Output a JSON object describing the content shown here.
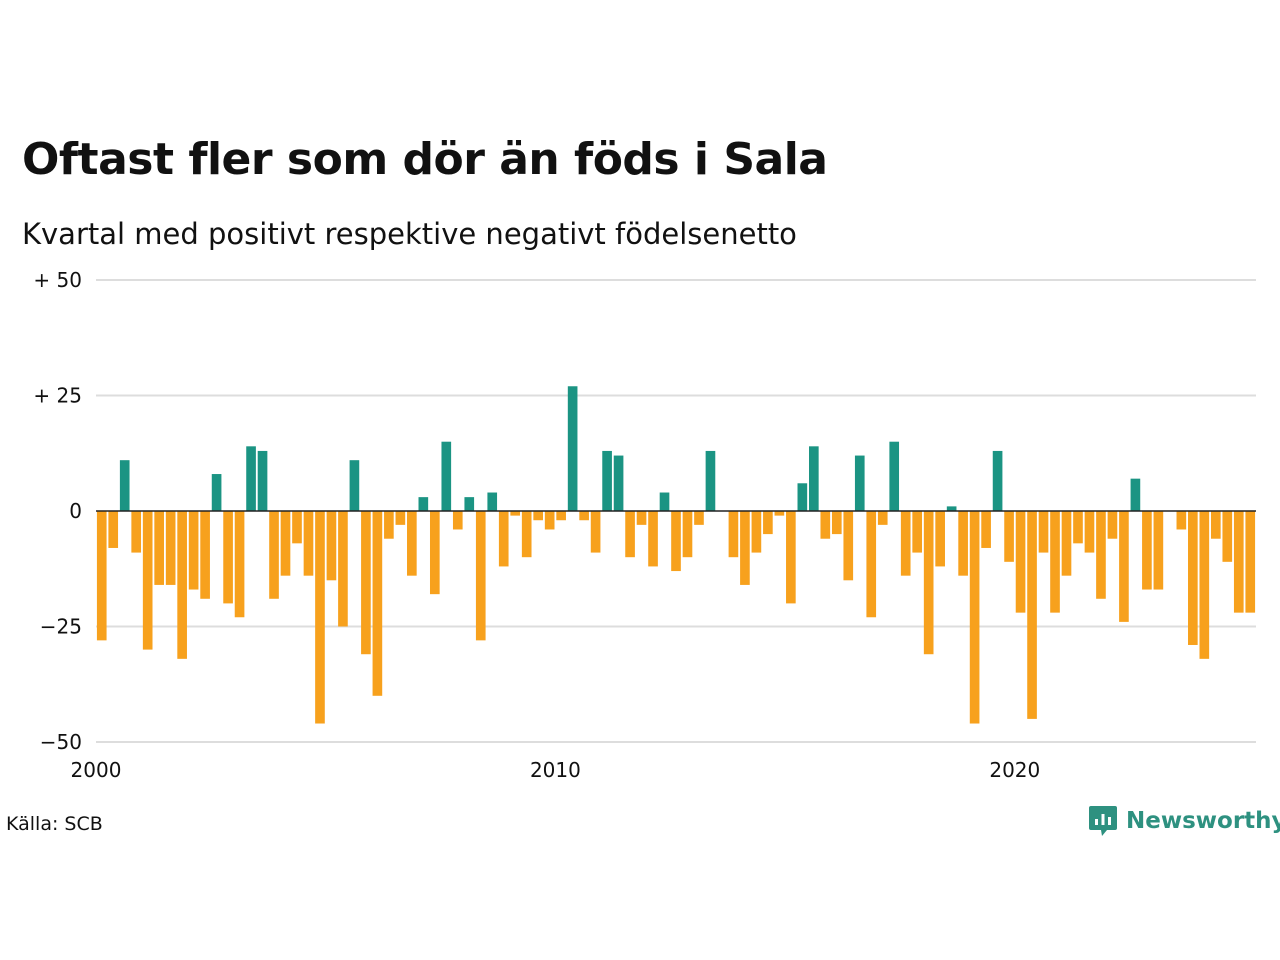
{
  "title": "Oftast fler som dör än föds i Sala",
  "subtitle": "Kvartal med positivt respektive negativt födelsenetto",
  "source": "Källa: SCB",
  "brand": {
    "name": "Newsworthy",
    "icon": "newsworthy-logo-icon",
    "color": "#2e9180"
  },
  "colors": {
    "positive": "#1b9483",
    "negative": "#f7a11d",
    "grid": "#dddddd",
    "zero": "#222222"
  },
  "chart_data": {
    "type": "bar",
    "title": "",
    "xlabel": "",
    "ylabel": "",
    "ylim": [
      -50,
      50
    ],
    "xlim": [
      2000,
      2025.25
    ],
    "grid": true,
    "legend": "none",
    "y_ticks": [
      {
        "value": 50,
        "label": "+ 50"
      },
      {
        "value": 25,
        "label": "+ 25"
      },
      {
        "value": 0,
        "label": "0"
      },
      {
        "value": -25,
        "label": "−25"
      },
      {
        "value": -50,
        "label": "−50"
      }
    ],
    "x_ticks": [
      {
        "value": 2000,
        "label": "2000"
      },
      {
        "value": 2010,
        "label": "2010"
      },
      {
        "value": 2020,
        "label": "2020"
      }
    ],
    "categories": [
      "2000 K1",
      "2000 K2",
      "2000 K3",
      "2000 K4",
      "2001 K1",
      "2001 K2",
      "2001 K3",
      "2001 K4",
      "2002 K1",
      "2002 K2",
      "2002 K3",
      "2002 K4",
      "2003 K1",
      "2003 K2",
      "2003 K3",
      "2003 K4",
      "2004 K1",
      "2004 K2",
      "2004 K3",
      "2004 K4",
      "2005 K1",
      "2005 K2",
      "2005 K3",
      "2005 K4",
      "2006 K1",
      "2006 K2",
      "2006 K3",
      "2006 K4",
      "2007 K1",
      "2007 K2",
      "2007 K3",
      "2007 K4",
      "2008 K1",
      "2008 K2",
      "2008 K3",
      "2008 K4",
      "2009 K1",
      "2009 K2",
      "2009 K3",
      "2009 K4",
      "2010 K1",
      "2010 K2",
      "2010 K3",
      "2010 K4",
      "2011 K1",
      "2011 K2",
      "2011 K3",
      "2011 K4",
      "2012 K1",
      "2012 K2",
      "2012 K3",
      "2012 K4",
      "2013 K1",
      "2013 K2",
      "2013 K3",
      "2013 K4",
      "2014 K1",
      "2014 K2",
      "2014 K3",
      "2014 K4",
      "2015 K1",
      "2015 K2",
      "2015 K3",
      "2015 K4",
      "2016 K1",
      "2016 K2",
      "2016 K3",
      "2016 K4",
      "2017 K1",
      "2017 K2",
      "2017 K3",
      "2017 K4",
      "2018 K1",
      "2018 K2",
      "2018 K3",
      "2018 K4",
      "2019 K1",
      "2019 K2",
      "2019 K3",
      "2019 K4",
      "2020 K1",
      "2020 K2",
      "2020 K3",
      "2020 K4",
      "2021 K1",
      "2021 K2",
      "2021 K3",
      "2021 K4",
      "2022 K1",
      "2022 K2",
      "2022 K3",
      "2022 K4",
      "2023 K1",
      "2023 K2",
      "2023 K3",
      "2023 K4",
      "2024 K1",
      "2024 K2",
      "2024 K3",
      "2024 K4",
      "2025 K1"
    ],
    "values": [
      -28,
      -8,
      11,
      -9,
      -30,
      -16,
      -16,
      -32,
      -17,
      -19,
      8,
      -20,
      -23,
      14,
      13,
      -19,
      -14,
      -7,
      -14,
      -46,
      -15,
      -25,
      11,
      -31,
      -40,
      -6,
      -3,
      -14,
      3,
      -18,
      15,
      -4,
      3,
      -28,
      4,
      -12,
      -1,
      -10,
      -2,
      -4,
      -2,
      27,
      -2,
      -9,
      13,
      12,
      -10,
      -3,
      -12,
      4,
      -13,
      -10,
      -3,
      13,
      0,
      -10,
      -16,
      -9,
      -5,
      -1,
      -20,
      6,
      14,
      -6,
      -5,
      -15,
      12,
      -23,
      -3,
      15,
      -14,
      -9,
      -31,
      -12,
      1,
      -14,
      -46,
      -8,
      13,
      -11,
      -22,
      -45,
      -9,
      -22,
      -14,
      -7,
      -9,
      -19,
      -6,
      -24,
      7,
      -17,
      -17,
      0,
      -4,
      -29,
      -32,
      -6,
      -11,
      -22,
      -22
    ]
  }
}
